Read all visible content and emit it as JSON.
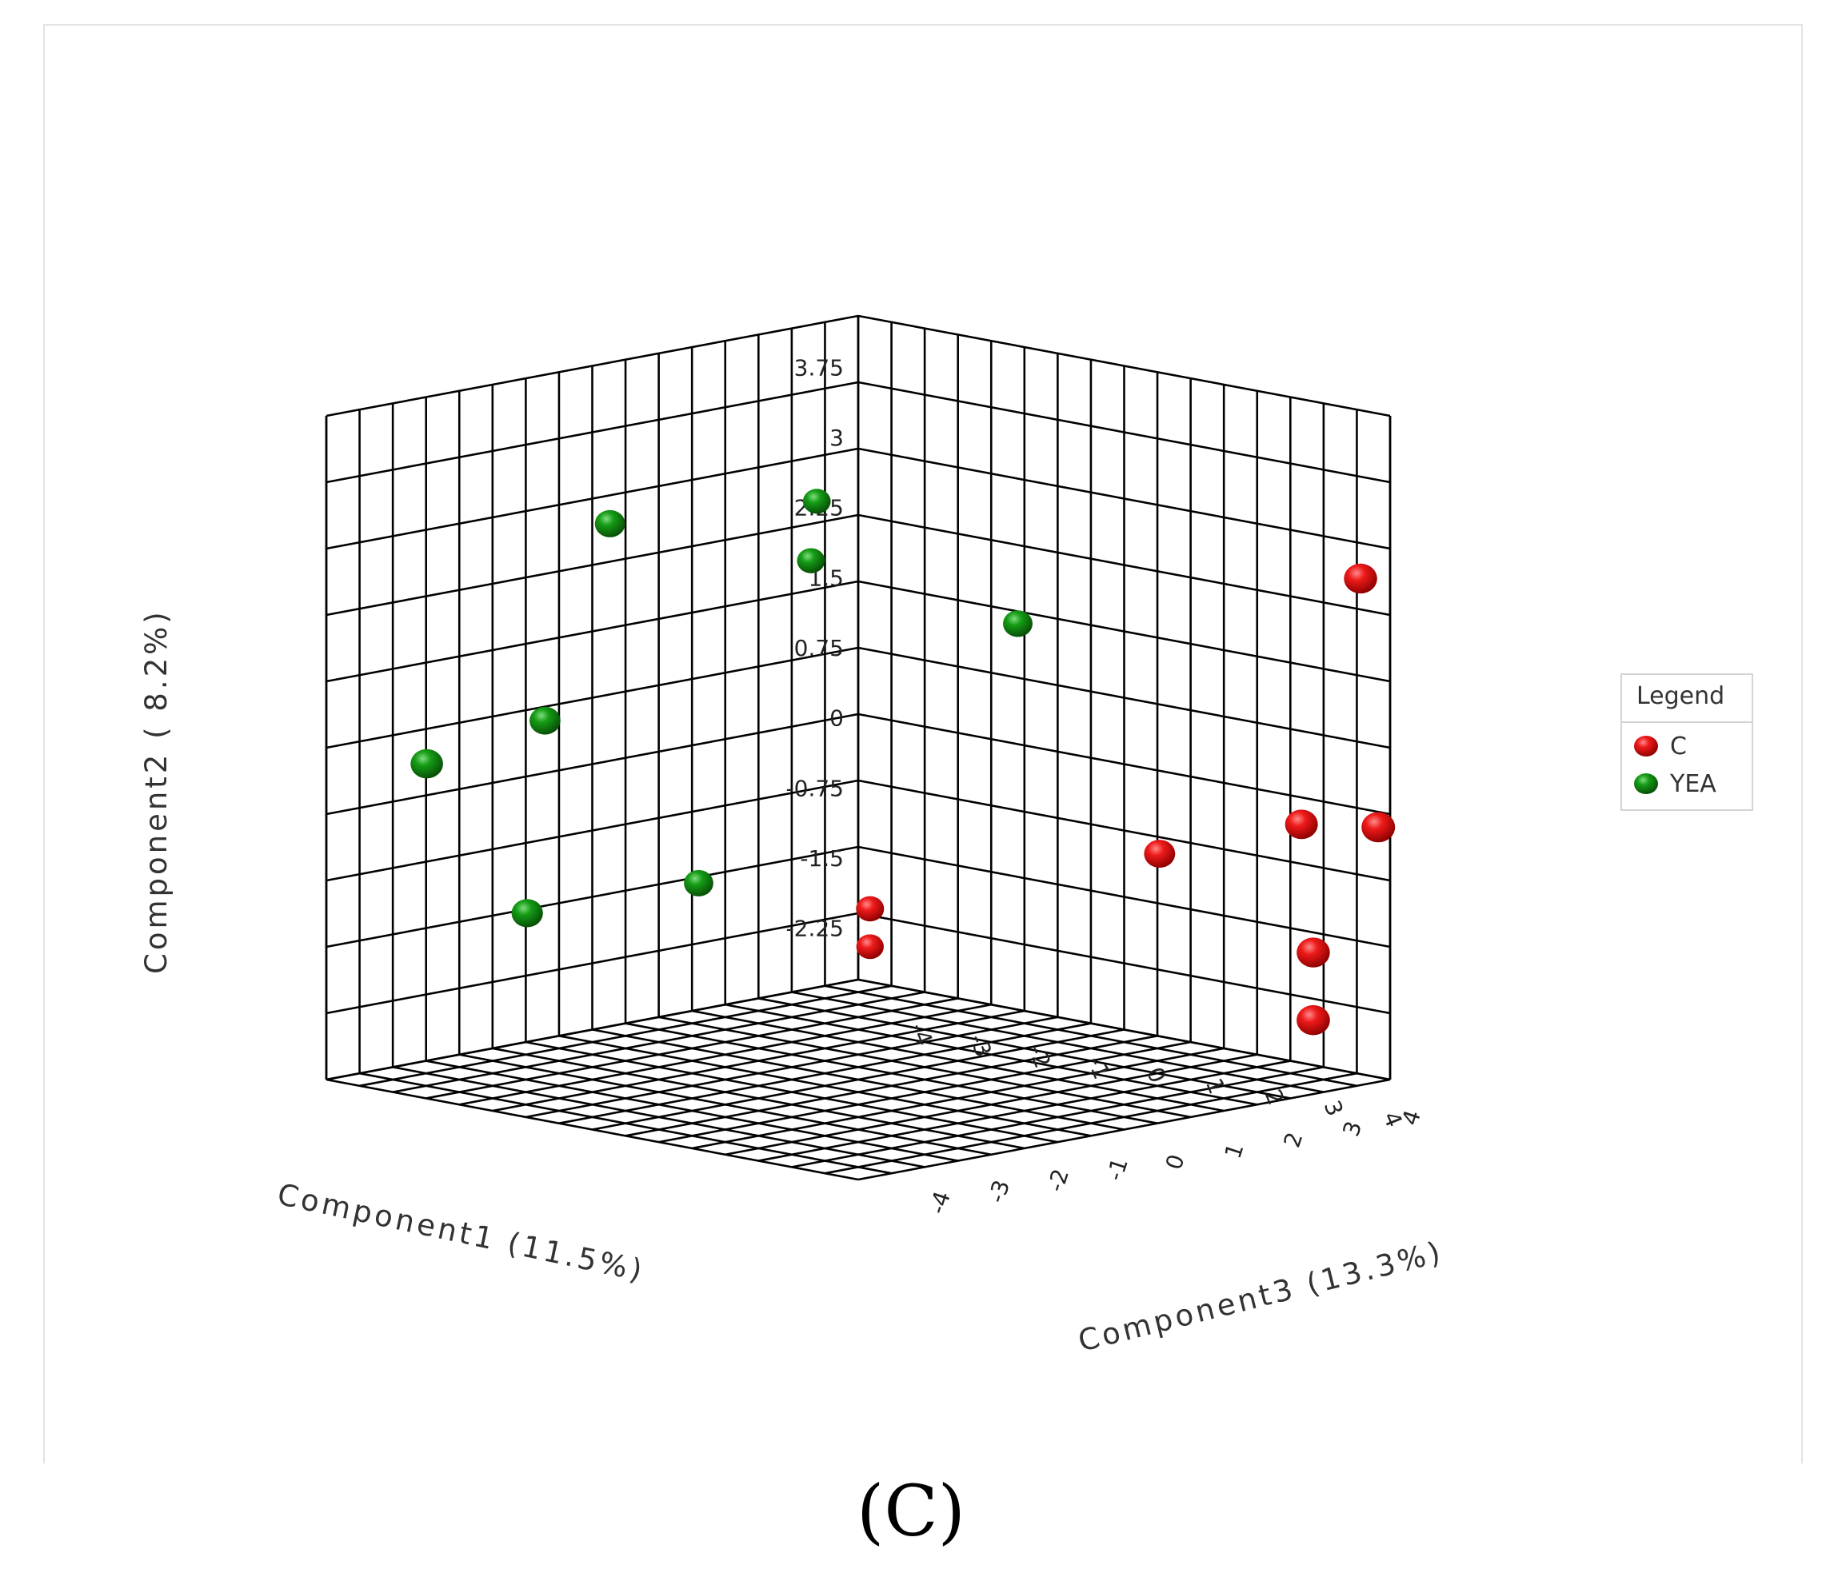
{
  "panel_label": "(C)",
  "chart_data": {
    "type": "scatter",
    "projection": "3d",
    "axes": {
      "x": {
        "label": "Component1 (11.5%)",
        "ticks": [
          "-4",
          "-3",
          "-2",
          "-1",
          "0",
          "1",
          "2",
          "3",
          "4"
        ],
        "range": [
          -4.5,
          4.5
        ]
      },
      "y": {
        "label": "Component2 ( 8.2%)",
        "ticks": [
          "-2.25",
          "-1.5",
          "-0.75",
          "0",
          "0.75",
          "1.5",
          "2.25",
          "3",
          "3.75"
        ],
        "range": [
          -2.8,
          4.3
        ]
      },
      "z": {
        "label": "Component3 (13.3%)",
        "ticks": [
          "-4",
          "-3",
          "-2",
          "-1",
          "0",
          "1",
          "2",
          "3",
          "4"
        ],
        "range": [
          -4.5,
          4.5
        ]
      }
    },
    "grid": true,
    "legend": {
      "title": "Legend",
      "position": "right"
    },
    "series": [
      {
        "name": "C",
        "color": "#e01010",
        "points": [
          {
            "x": 4.0,
            "y": 2.5,
            "z": -4.5
          },
          {
            "x": 4.4,
            "y": -0.1,
            "z": -4.4
          },
          {
            "x": 3.2,
            "y": -0.2,
            "z": -4.3
          },
          {
            "x": 3.6,
            "y": -1.5,
            "z": -4.1
          },
          {
            "x": 3.7,
            "y": -2.2,
            "z": -4.0
          },
          {
            "x": 0.8,
            "y": -0.8,
            "z": -4.3
          },
          {
            "x": -3.8,
            "y": -1.9,
            "z": -4.0
          },
          {
            "x": -4.2,
            "y": -2.4,
            "z": -4.4
          }
        ]
      },
      {
        "name": "YEA",
        "color": "#139a13",
        "points": [
          {
            "x": -1.5,
            "y": 1.4,
            "z": -4.2
          },
          {
            "x": -4.5,
            "y": 2.4,
            "z": -3.8
          },
          {
            "x": -4.4,
            "y": 1.8,
            "z": -3.6
          },
          {
            "x": -4.4,
            "y": 2.6,
            "z": -0.2
          },
          {
            "x": -4.5,
            "y": 0.6,
            "z": 0.8
          },
          {
            "x": -4.4,
            "y": 0.4,
            "z": 2.9
          },
          {
            "x": -4.3,
            "y": -1.4,
            "z": -1.6
          },
          {
            "x": -4.4,
            "y": -1.4,
            "z": 1.2
          }
        ]
      }
    ]
  }
}
